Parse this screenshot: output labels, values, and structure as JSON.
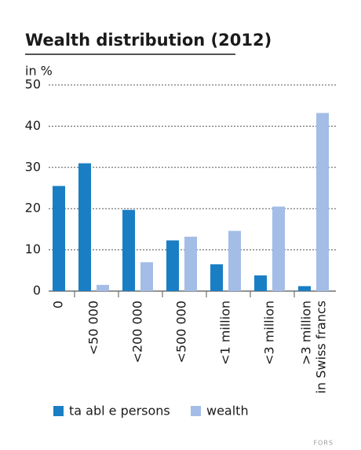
{
  "chart_data": {
    "type": "bar",
    "title": "Wealth distribution (2012)",
    "ylabel": "in %",
    "categories": [
      "0",
      "<50 000",
      "<200 000",
      "<500 000",
      "<1 million",
      "<3 million",
      ">3 million"
    ],
    "xlabel": "in Swiss francs",
    "series": [
      {
        "name": "ta abl e persons",
        "color": "#1a7ec4",
        "values": [
          25.5,
          31,
          19.7,
          12.3,
          6.5,
          3.8,
          1.2
        ]
      },
      {
        "name": "wealth",
        "color": "#a3bde6",
        "values": [
          0,
          1.5,
          7,
          13.2,
          14.6,
          20.5,
          43.2
        ]
      }
    ],
    "ylim": [
      0,
      50
    ],
    "yticks": [
      0,
      10,
      20,
      30,
      40,
      50
    ],
    "grid": true,
    "legend": "bottom",
    "source": "FORS"
  }
}
